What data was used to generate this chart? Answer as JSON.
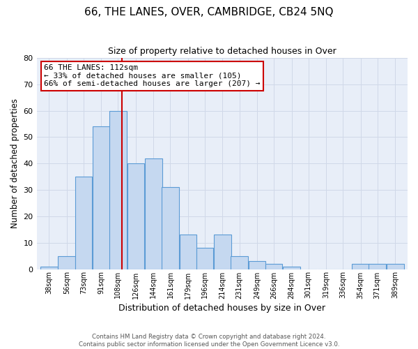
{
  "title": "66, THE LANES, OVER, CAMBRIDGE, CB24 5NQ",
  "subtitle": "Size of property relative to detached houses in Over",
  "xlabel": "Distribution of detached houses by size in Over",
  "ylabel": "Number of detached properties",
  "bins": [
    38,
    56,
    73,
    91,
    108,
    126,
    144,
    161,
    179,
    196,
    214,
    231,
    249,
    266,
    284,
    301,
    319,
    336,
    354,
    371,
    389
  ],
  "values": [
    1,
    5,
    35,
    54,
    60,
    40,
    42,
    31,
    13,
    8,
    13,
    5,
    3,
    2,
    1,
    0,
    0,
    0,
    2,
    2,
    2
  ],
  "bar_color": "#c5d8f0",
  "bar_edge_color": "#5b9bd5",
  "property_size": 112,
  "red_line_color": "#cc0000",
  "annotation_text": "66 THE LANES: 112sqm\n← 33% of detached houses are smaller (105)\n66% of semi-detached houses are larger (207) →",
  "annotation_box_color": "#ffffff",
  "annotation_box_edge_color": "#cc0000",
  "ylim": [
    0,
    80
  ],
  "yticks": [
    0,
    10,
    20,
    30,
    40,
    50,
    60,
    70,
    80
  ],
  "grid_color": "#d0d8e8",
  "background_color": "#e8eef8",
  "footer_line1": "Contains HM Land Registry data © Crown copyright and database right 2024.",
  "footer_line2": "Contains public sector information licensed under the Open Government Licence v3.0."
}
